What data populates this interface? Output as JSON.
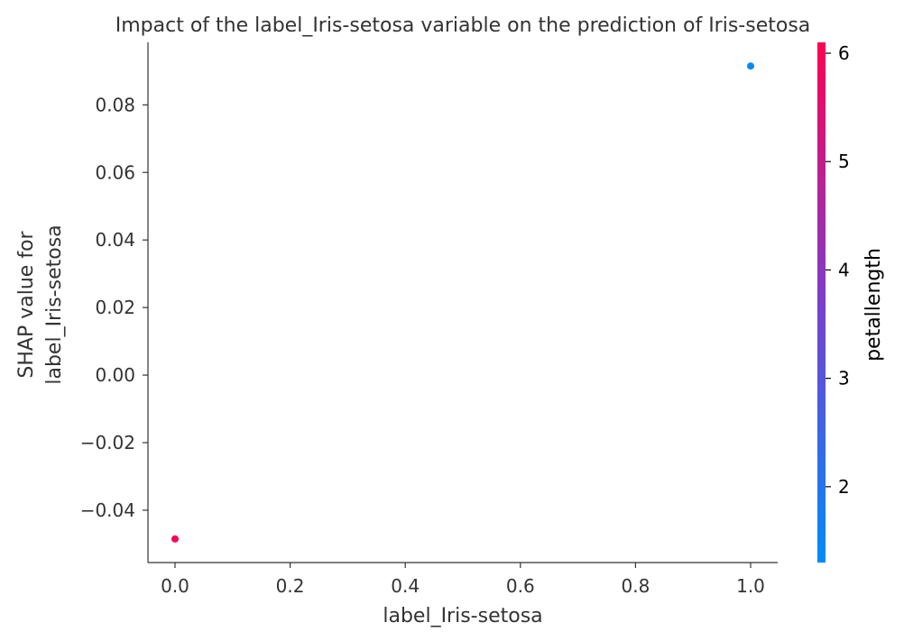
{
  "chart_data": {
    "type": "scatter",
    "title": "Impact of the label_Iris-setosa variable on the prediction of Iris-setosa",
    "xlabel": "label_Iris-setosa",
    "ylabel": [
      "SHAP value for",
      "label_Iris-setosa"
    ],
    "xlim": [
      -0.047,
      1.047
    ],
    "ylim": [
      -0.0555,
      0.0985
    ],
    "x_ticks": [
      0.0,
      0.2,
      0.4,
      0.6,
      0.8,
      1.0
    ],
    "x_tick_labels": [
      "0.0",
      "0.2",
      "0.4",
      "0.6",
      "0.8",
      "1.0"
    ],
    "y_ticks": [
      -0.04,
      -0.02,
      0.0,
      0.02,
      0.04,
      0.06,
      0.08
    ],
    "y_tick_labels": [
      "−0.04",
      "−0.02",
      "0.00",
      "0.02",
      "0.04",
      "0.06",
      "0.08"
    ],
    "points": [
      {
        "x": 0.0,
        "y": -0.0485,
        "color_value": 6.0
      },
      {
        "x": 1.0,
        "y": 0.0915,
        "color_value": 1.4
      }
    ],
    "colorbar": {
      "label": "petallength",
      "range": [
        1.3,
        6.1
      ],
      "ticks": [
        2,
        3,
        4,
        5,
        6
      ],
      "tick_labels": [
        "2",
        "3",
        "4",
        "5",
        "6"
      ],
      "colors": [
        "#008bfb",
        "#ff0052"
      ]
    },
    "grid": false
  }
}
